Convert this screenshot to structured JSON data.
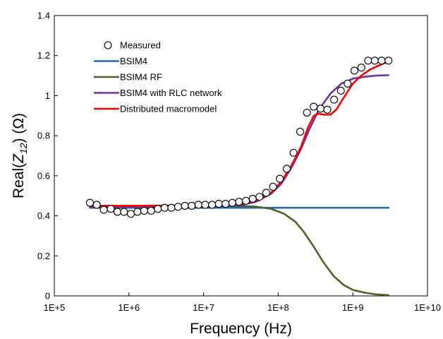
{
  "chart_data": {
    "type": "line",
    "title": "",
    "xlabel": "Frequency (Hz)",
    "ylabel": {
      "prefix": "Real(",
      "sym": "Z",
      "sub": "12",
      "suffix": ") (Ω)"
    },
    "xscale": "log",
    "xlim": [
      100000,
      10000000000
    ],
    "ylim": [
      0,
      1.4
    ],
    "xticks": [
      100000,
      1000000,
      10000000,
      100000000,
      1000000000,
      10000000000
    ],
    "xtick_labels": [
      "1E+5",
      "1E+6",
      "1E+7",
      "1E+8",
      "1E+9",
      "1E+10"
    ],
    "yticks": [
      0,
      0.2,
      0.4,
      0.6,
      0.8,
      1,
      1.2,
      1.4
    ],
    "ytick_labels": [
      "0",
      "0.2",
      "0.4",
      "0.6",
      "0.8",
      "1",
      "1.2",
      "1.4"
    ],
    "grid": false,
    "legend_position": "top-left",
    "series": [
      {
        "name": "Measured",
        "kind": "markers",
        "color": "#000000",
        "x": [
          300000,
          370000,
          460000,
          570000,
          700000,
          860000,
          1060000,
          1300000,
          1600000,
          1980000,
          2440000,
          3000000,
          3700000,
          4560000,
          5620000,
          6930000,
          8540000,
          10500000,
          13000000,
          16000000,
          19700000,
          24300000,
          29900000,
          36900000,
          45500000,
          56100000,
          69100000,
          85200000,
          105000000,
          130000000,
          160000000,
          197000000,
          243000000,
          299000000,
          369000000,
          455000000,
          561000000,
          691000000,
          852000000,
          1050000000,
          1300000000,
          1600000000,
          1970000000,
          2430000000,
          3000000000
        ],
        "y": [
          0.465,
          0.455,
          0.43,
          0.435,
          0.42,
          0.42,
          0.41,
          0.42,
          0.425,
          0.425,
          0.435,
          0.44,
          0.44,
          0.445,
          0.45,
          0.45,
          0.455,
          0.455,
          0.455,
          0.46,
          0.46,
          0.465,
          0.47,
          0.475,
          0.485,
          0.495,
          0.515,
          0.545,
          0.585,
          0.635,
          0.715,
          0.82,
          0.915,
          0.945,
          0.935,
          0.93,
          0.98,
          1.025,
          1.06,
          1.125,
          1.14,
          1.175,
          1.175,
          1.175,
          1.175
        ]
      },
      {
        "name": "BSIM4",
        "kind": "line",
        "color": "#1f6fb4",
        "x": [
          300000,
          1000000,
          10000000,
          100000000,
          1000000000,
          3000000000
        ],
        "y": [
          0.44,
          0.44,
          0.44,
          0.44,
          0.44,
          0.44
        ]
      },
      {
        "name": "BSIM4 RF",
        "kind": "line",
        "color": "#4f6228",
        "x": [
          300000,
          1000000,
          10000000,
          30000000,
          50000000,
          80000000,
          120000000,
          170000000,
          220000000,
          300000000,
          400000000,
          550000000,
          750000000,
          1000000000,
          1500000000,
          2000000000,
          3000000000
        ],
        "y": [
          0.45,
          0.45,
          0.45,
          0.449,
          0.446,
          0.435,
          0.41,
          0.37,
          0.32,
          0.245,
          0.17,
          0.1,
          0.055,
          0.03,
          0.015,
          0.008,
          0.004
        ]
      },
      {
        "name": "BSIM4 with RLC network",
        "kind": "line",
        "color": "#7030a0",
        "x": [
          300000,
          1000000,
          10000000,
          30000000,
          50000000,
          80000000,
          110000000,
          150000000,
          200000000,
          260000000,
          350000000,
          500000000,
          700000000,
          1000000000,
          1500000000,
          2000000000,
          3000000000
        ],
        "y": [
          0.445,
          0.445,
          0.447,
          0.452,
          0.47,
          0.51,
          0.56,
          0.64,
          0.73,
          0.83,
          0.93,
          1.01,
          1.06,
          1.085,
          1.095,
          1.1,
          1.102
        ]
      },
      {
        "name": "Distributed macromodel",
        "kind": "line",
        "color": "#ff0000",
        "x": [
          300000,
          1000000,
          10000000,
          30000000,
          50000000,
          80000000,
          110000000,
          150000000,
          200000000,
          250000000,
          300000000,
          350000000,
          400000000,
          500000000,
          600000000,
          700000000,
          850000000,
          1000000000,
          1300000000,
          1700000000,
          2200000000,
          3000000000
        ],
        "y": [
          0.45,
          0.45,
          0.452,
          0.458,
          0.475,
          0.515,
          0.57,
          0.65,
          0.74,
          0.84,
          0.9,
          0.91,
          0.905,
          0.905,
          0.93,
          0.97,
          1.02,
          1.06,
          1.1,
          1.13,
          1.15,
          1.17
        ]
      }
    ]
  }
}
